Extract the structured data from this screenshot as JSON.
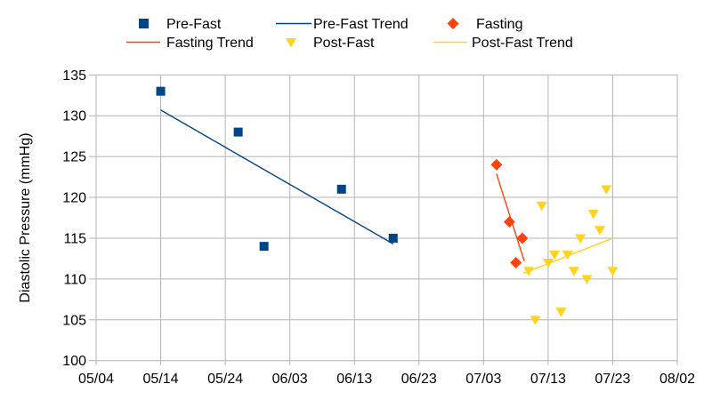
{
  "chart_data": {
    "type": "scatter",
    "title": "",
    "xlabel": "",
    "ylabel": "Diastolic Pressure (mmHg)",
    "grid": true,
    "legend_position": "top",
    "x_axis": {
      "tick_labels": [
        "05/04",
        "05/14",
        "05/24",
        "06/03",
        "06/13",
        "06/23",
        "07/03",
        "07/13",
        "07/23",
        "08/02"
      ],
      "tick_interval_days": 10,
      "range_days": [
        0,
        90
      ]
    },
    "y_axis": {
      "ticks": [
        100,
        105,
        110,
        115,
        120,
        125,
        130,
        135
      ],
      "range": [
        100,
        135
      ]
    },
    "series": [
      {
        "name": "Pre-Fast",
        "marker": "square",
        "color": "#004586",
        "points": [
          {
            "date": "05/14",
            "day": 10,
            "value": 133
          },
          {
            "date": "05/26",
            "day": 22,
            "value": 128
          },
          {
            "date": "05/30",
            "day": 26,
            "value": 114
          },
          {
            "date": "06/11",
            "day": 38,
            "value": 121
          },
          {
            "date": "06/19",
            "day": 46,
            "value": 115
          }
        ]
      },
      {
        "name": "Fasting",
        "marker": "diamond",
        "color": "#FF420E",
        "points": [
          {
            "date": "07/05",
            "day": 62,
            "value": 124
          },
          {
            "date": "07/07",
            "day": 64,
            "value": 117
          },
          {
            "date": "07/08",
            "day": 65,
            "value": 112
          },
          {
            "date": "07/09",
            "day": 66,
            "value": 115
          }
        ]
      },
      {
        "name": "Post-Fast",
        "marker": "triangle-down",
        "color": "#FFD320",
        "points": [
          {
            "date": "07/10",
            "day": 67,
            "value": 111
          },
          {
            "date": "07/11",
            "day": 68,
            "value": 105
          },
          {
            "date": "07/12",
            "day": 69,
            "value": 119
          },
          {
            "date": "07/13",
            "day": 70,
            "value": 112
          },
          {
            "date": "07/14",
            "day": 71,
            "value": 113
          },
          {
            "date": "07/15",
            "day": 72,
            "value": 106
          },
          {
            "date": "07/16",
            "day": 73,
            "value": 113
          },
          {
            "date": "07/17",
            "day": 74,
            "value": 111
          },
          {
            "date": "07/18",
            "day": 75,
            "value": 115
          },
          {
            "date": "07/19",
            "day": 76,
            "value": 110
          },
          {
            "date": "07/20",
            "day": 77,
            "value": 118
          },
          {
            "date": "07/21",
            "day": 78,
            "value": 116
          },
          {
            "date": "07/22",
            "day": 79,
            "value": 121
          },
          {
            "date": "07/23",
            "day": 80,
            "value": 111
          }
        ]
      }
    ],
    "trend_lines": [
      {
        "name": "Pre-Fast Trend",
        "color": "#004586",
        "start": {
          "day": 10,
          "value": 130.7
        },
        "end": {
          "day": 46,
          "value": 114.3
        }
      },
      {
        "name": "Fasting Trend",
        "color": "#FF420E",
        "start": {
          "day": 62,
          "value": 122.9
        },
        "end": {
          "day": 66.3,
          "value": 112.2
        }
      },
      {
        "name": "Post-Fast Trend",
        "color": "#FFD320",
        "start": {
          "day": 66.2,
          "value": 110.7
        },
        "end": {
          "day": 80,
          "value": 115.0
        }
      }
    ]
  },
  "legend": {
    "entries": [
      {
        "label": "Pre-Fast",
        "marker": "square",
        "color": "#004586"
      },
      {
        "label": "Pre-Fast Trend",
        "marker": "line",
        "color": "#004586"
      },
      {
        "label": "Fasting",
        "marker": "diamond",
        "color": "#FF420E"
      },
      {
        "label": "Fasting Trend",
        "marker": "line",
        "color": "#FF420E"
      },
      {
        "label": "Post-Fast",
        "marker": "triangle-down",
        "color": "#FFD320"
      },
      {
        "label": "Post-Fast Trend",
        "marker": "line",
        "color": "#FFD320"
      }
    ]
  },
  "style": {
    "grid_color": "#b3b3b3",
    "text_color": "#000000",
    "background": "#ffffff"
  }
}
